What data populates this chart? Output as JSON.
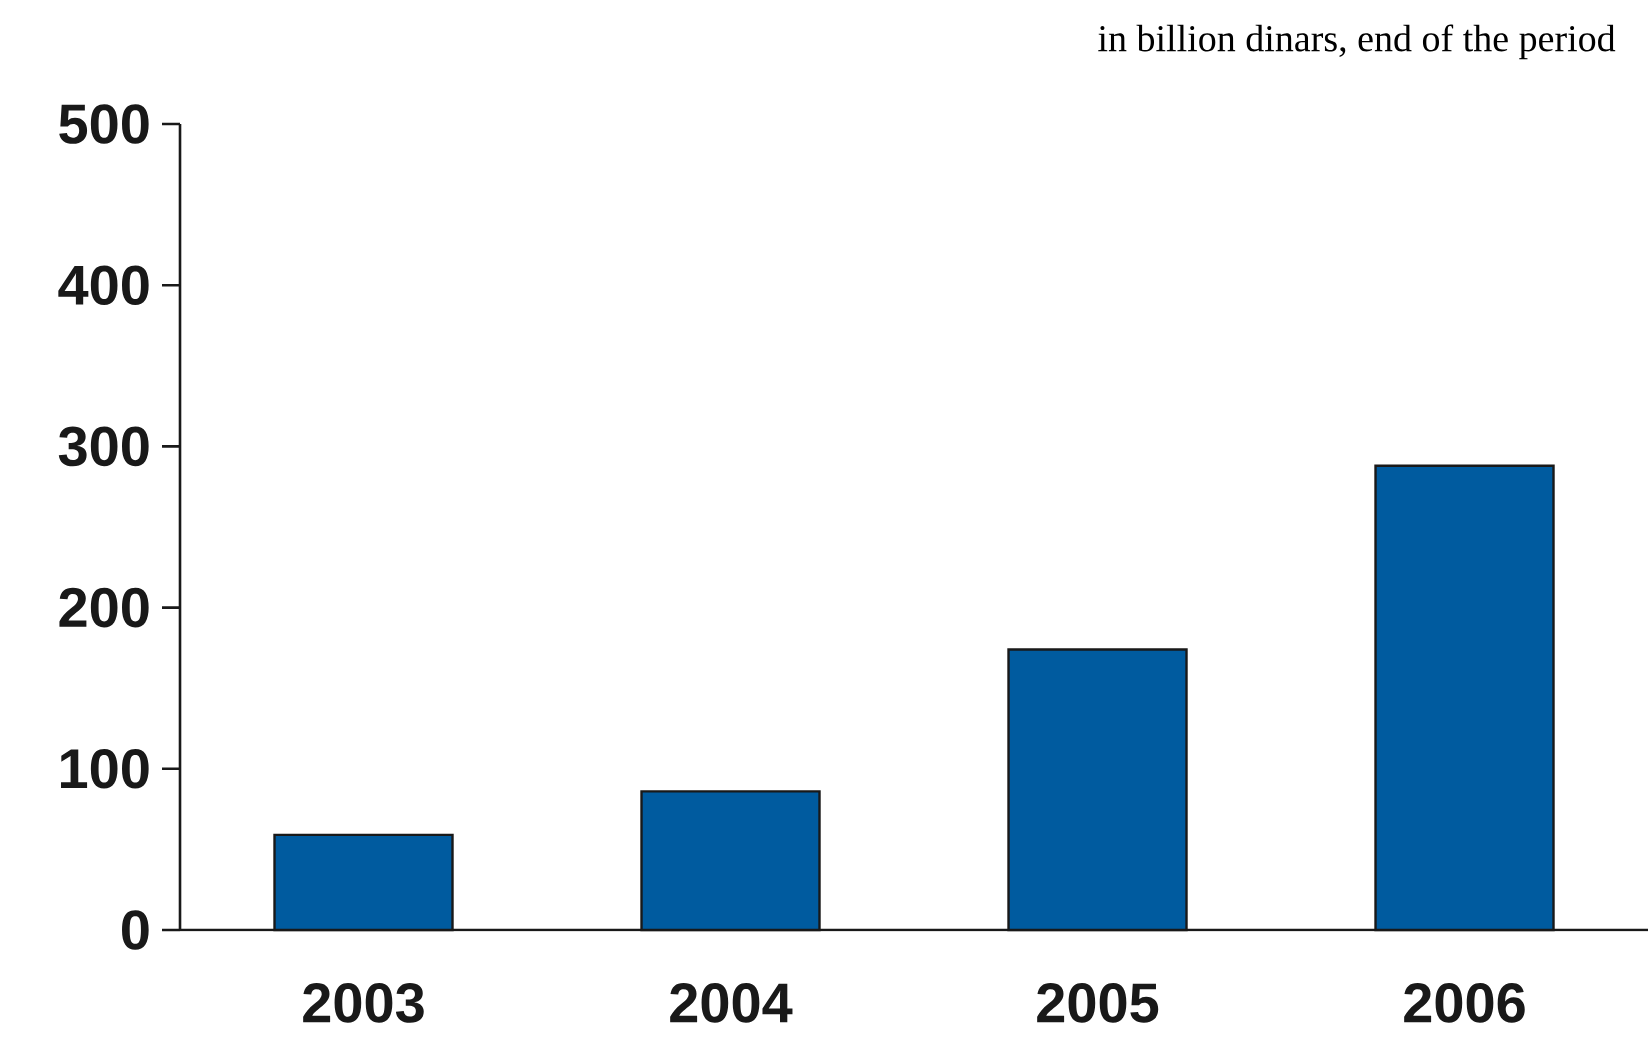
{
  "chart_data": {
    "type": "bar",
    "subtitle": "in billion dinars, end of the period",
    "categories": [
      "2003",
      "2004",
      "2005",
      "2006"
    ],
    "values": [
      59,
      86,
      174,
      288
    ],
    "color": "#005b9f",
    "ylim": [
      0,
      500
    ],
    "yticks": [
      0,
      100,
      200,
      300,
      400,
      500
    ],
    "grid": false
  }
}
